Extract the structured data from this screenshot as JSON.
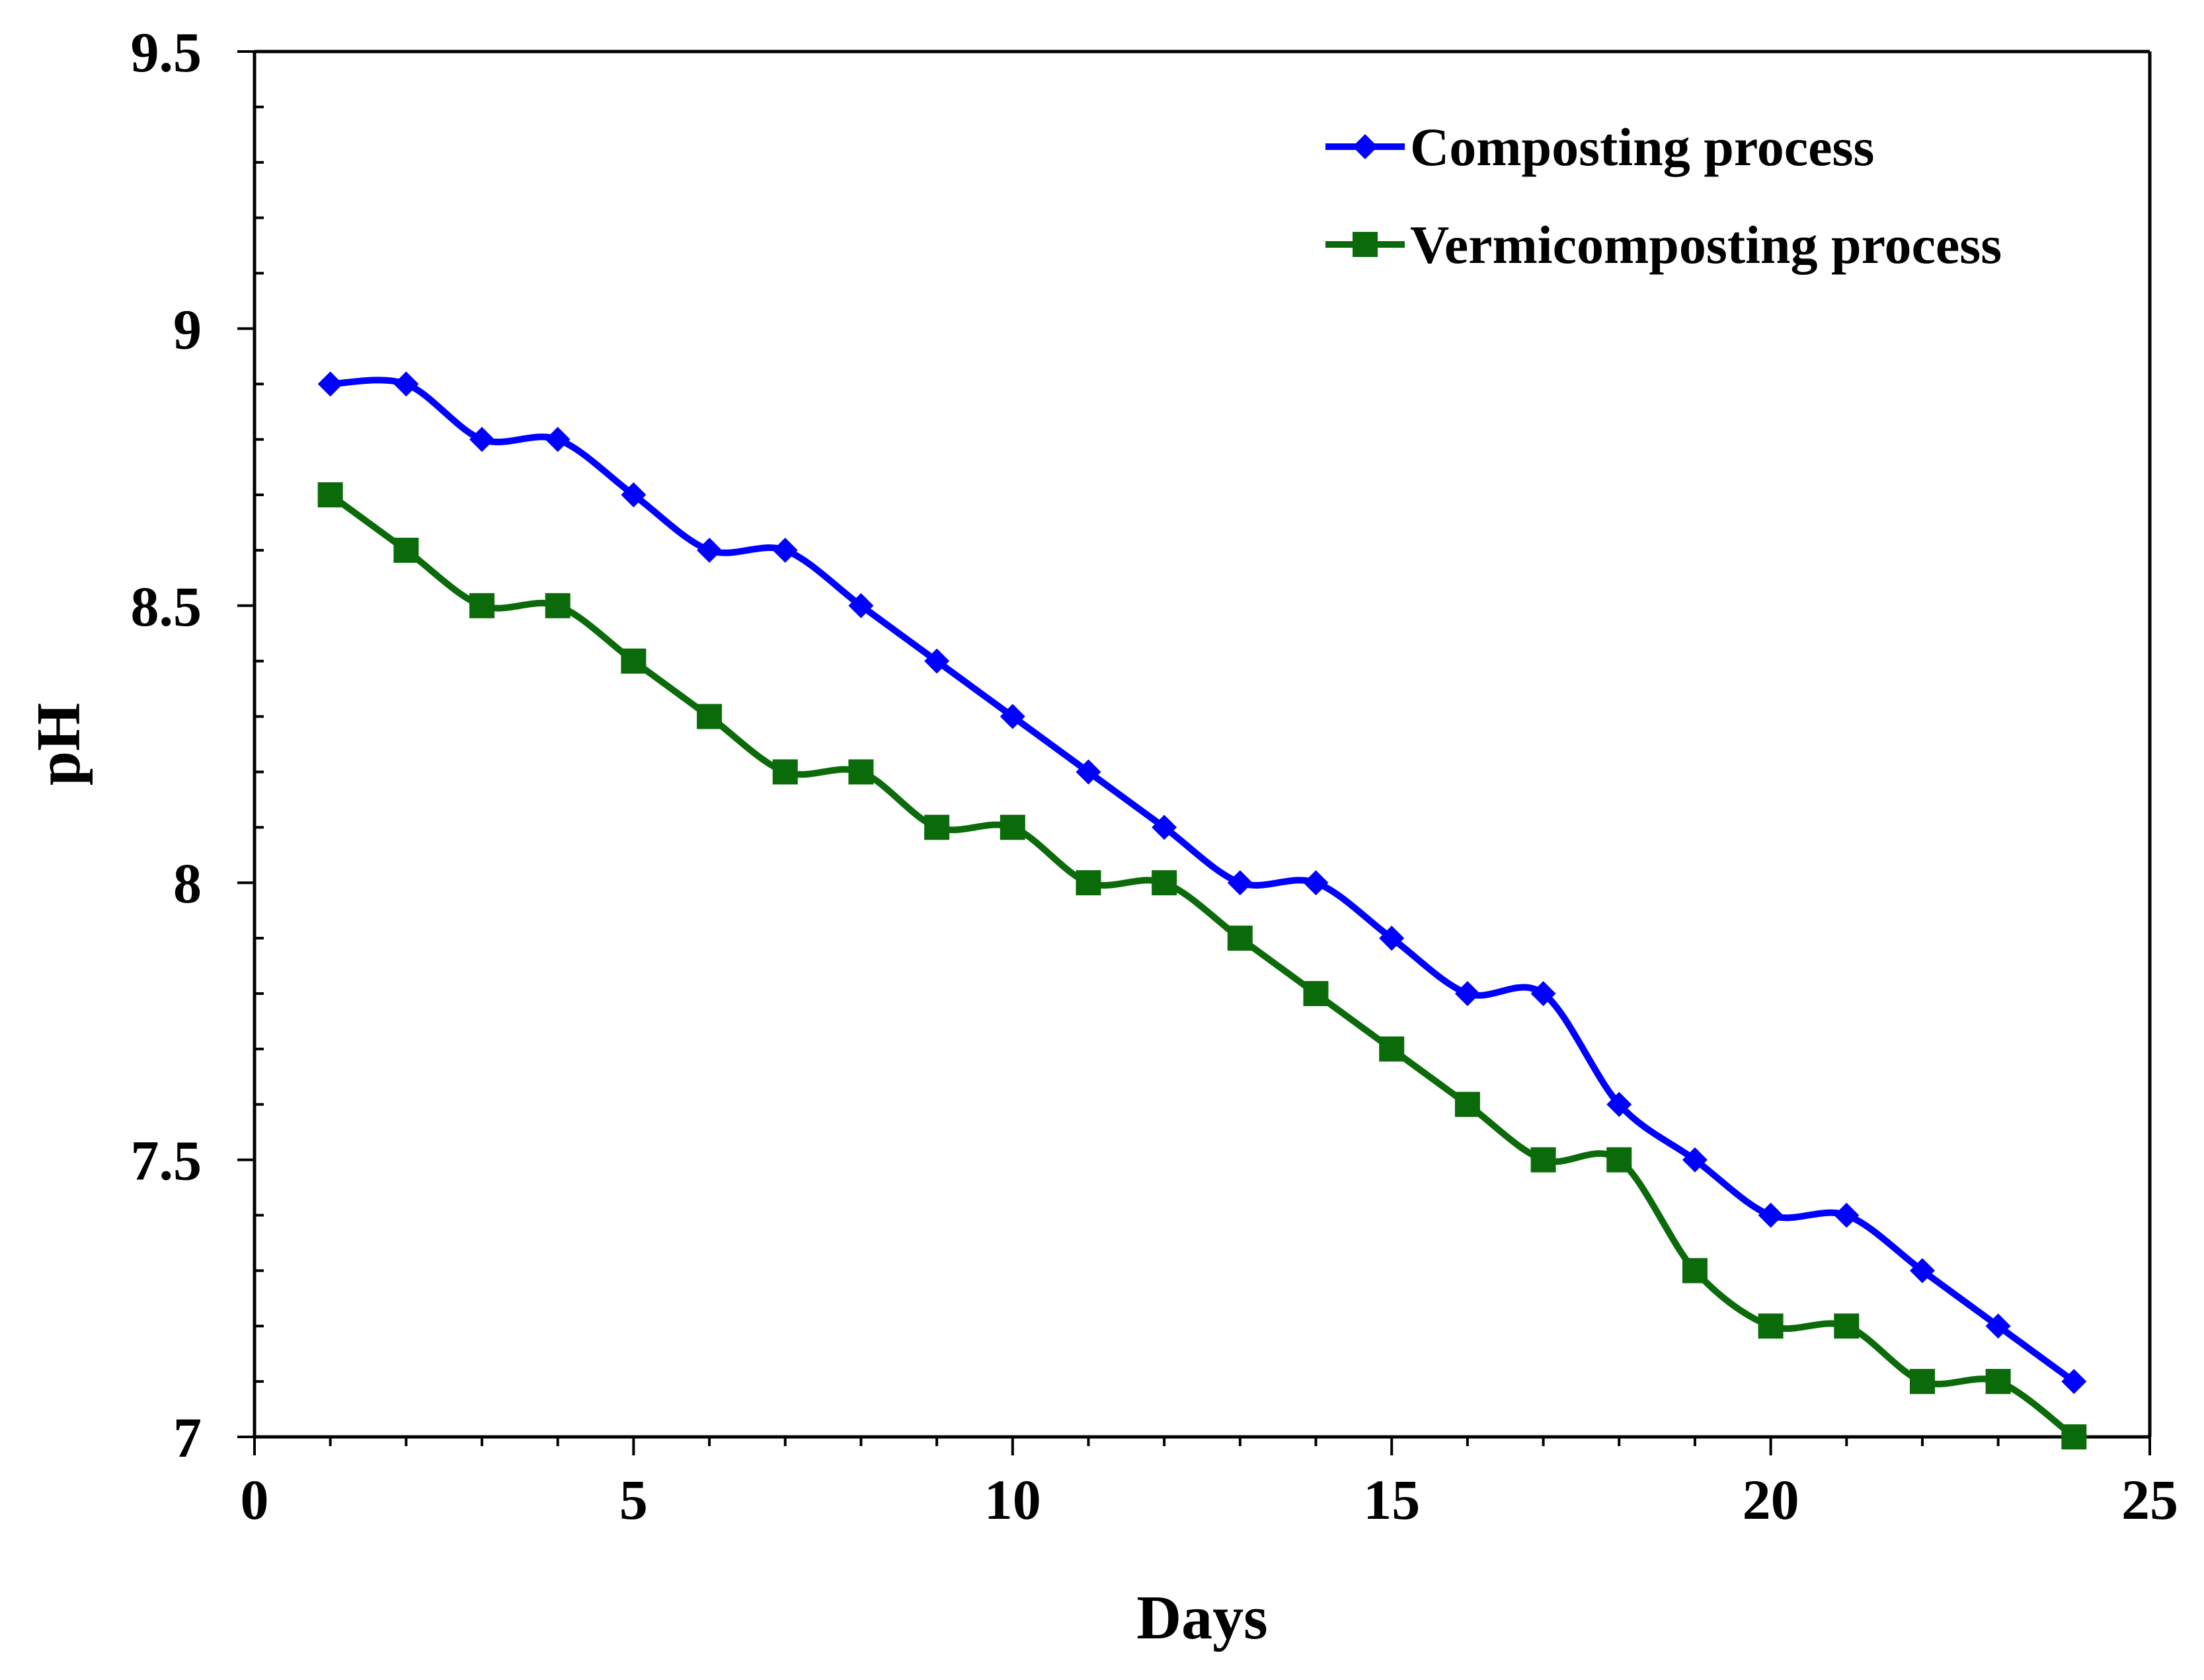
{
  "chart_data": {
    "type": "line",
    "title": "",
    "xlabel": "Days",
    "ylabel": "pH",
    "xlim": [
      0,
      25
    ],
    "ylim": [
      7,
      9.5
    ],
    "x_major_ticks": [
      0,
      5,
      10,
      15,
      20,
      25
    ],
    "x_tick_labels": [
      "0",
      "5",
      "10",
      "15",
      "20",
      "25"
    ],
    "x_minor_step": 1,
    "y_major_ticks": [
      7,
      7.5,
      8,
      8.5,
      9,
      9.5
    ],
    "y_tick_labels": [
      "7",
      "7.5",
      "8",
      "8.5",
      "9",
      "9.5"
    ],
    "y_minor_step": 0.1,
    "grid": false,
    "legend_position": "top-right",
    "x": [
      1,
      2,
      3,
      4,
      5,
      6,
      7,
      8,
      9,
      10,
      11,
      12,
      13,
      14,
      15,
      16,
      17,
      18,
      19,
      20,
      21,
      22,
      23,
      24
    ],
    "series": [
      {
        "name": "Composting process",
        "color": "#0000ff",
        "marker": "diamond",
        "values": [
          8.9,
          8.9,
          8.8,
          8.8,
          8.7,
          8.6,
          8.6,
          8.5,
          8.4,
          8.3,
          8.2,
          8.1,
          8.0,
          8.0,
          7.9,
          7.8,
          7.8,
          7.6,
          7.5,
          7.4,
          7.4,
          7.3,
          7.2,
          7.1
        ]
      },
      {
        "name": "Vermicomposting process",
        "color": "#0b6b0b",
        "marker": "square",
        "values": [
          8.7,
          8.6,
          8.5,
          8.5,
          8.4,
          8.3,
          8.2,
          8.2,
          8.1,
          8.1,
          8.0,
          8.0,
          7.9,
          7.8,
          7.7,
          7.6,
          7.5,
          7.5,
          7.3,
          7.2,
          7.2,
          7.1,
          7.1,
          7.0
        ]
      }
    ]
  }
}
